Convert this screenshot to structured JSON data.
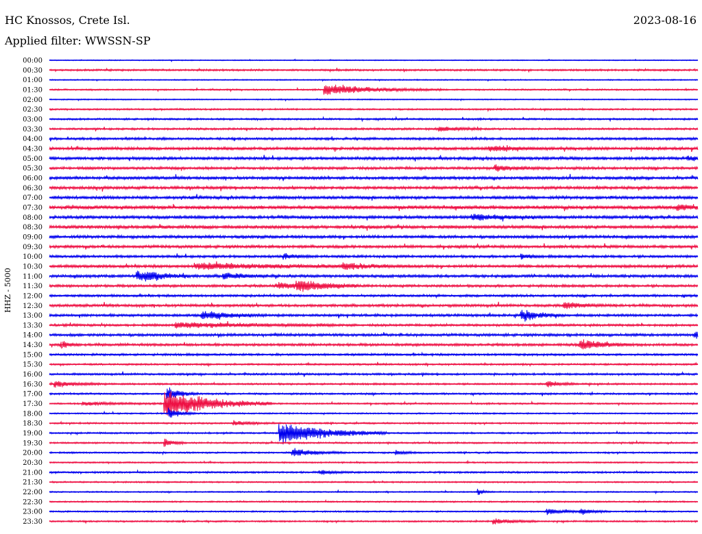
{
  "header": {
    "station": "HC Knossos, Crete Isl.",
    "filter": "Applied filter: WWSSN-SP",
    "date": "2023-08-16"
  },
  "chart_data": {
    "type": "line",
    "subtype": "helicorder",
    "channel_label": "HHZ - 5000",
    "colors": [
      "#0000ee",
      "#ee1144"
    ],
    "rows": [
      "00:00",
      "00:30",
      "01:00",
      "01:30",
      "02:00",
      "02:30",
      "03:00",
      "03:30",
      "04:00",
      "04:30",
      "05:00",
      "05:30",
      "06:00",
      "06:30",
      "07:00",
      "07:30",
      "08:00",
      "08:30",
      "09:00",
      "09:30",
      "10:00",
      "10:30",
      "11:00",
      "11:30",
      "12:00",
      "12:30",
      "13:00",
      "13:30",
      "14:00",
      "14:30",
      "15:00",
      "15:30",
      "16:00",
      "16:30",
      "17:00",
      "17:30",
      "18:00",
      "18:30",
      "19:00",
      "19:30",
      "20:00",
      "20:30",
      "21:00",
      "21:30",
      "22:00",
      "22:30",
      "23:00",
      "23:30"
    ],
    "row_minutes": 30,
    "noise": [
      0.5,
      1.0,
      0.6,
      0.8,
      0.6,
      0.9,
      1.0,
      1.1,
      1.3,
      1.6,
      1.6,
      1.5,
      1.6,
      1.6,
      1.7,
      2.0,
      1.7,
      1.8,
      1.6,
      1.6,
      1.4,
      1.6,
      1.6,
      1.4,
      1.3,
      1.5,
      1.4,
      1.3,
      1.5,
      1.4,
      1.2,
      1.0,
      1.1,
      1.0,
      1.0,
      0.9,
      0.8,
      0.9,
      0.9,
      0.9,
      0.9,
      0.8,
      1.0,
      0.8,
      0.7,
      0.8,
      0.8,
      0.9
    ],
    "events": [
      {
        "row": 3,
        "minute": 12.7,
        "amp": 9,
        "duration": 2.2
      },
      {
        "row": 7,
        "minute": 18.0,
        "amp": 5,
        "duration": 0.8
      },
      {
        "row": 9,
        "minute": 20.3,
        "amp": 5,
        "duration": 1.2
      },
      {
        "row": 10,
        "minute": 29.5,
        "amp": 5,
        "duration": 0.4
      },
      {
        "row": 11,
        "minute": 20.6,
        "amp": 5,
        "duration": 0.8
      },
      {
        "row": 15,
        "minute": 29.0,
        "amp": 6,
        "duration": 0.5
      },
      {
        "row": 16,
        "minute": 19.5,
        "amp": 5,
        "duration": 1.5
      },
      {
        "row": 20,
        "minute": 10.8,
        "amp": 5,
        "duration": 0.5
      },
      {
        "row": 20,
        "minute": 21.8,
        "amp": 5,
        "duration": 0.4
      },
      {
        "row": 21,
        "minute": 6.7,
        "amp": 5,
        "duration": 4.0
      },
      {
        "row": 21,
        "minute": 13.5,
        "amp": 5,
        "duration": 1.0
      },
      {
        "row": 22,
        "minute": 4.4,
        "amp": 6,
        "duration": 0.8
      },
      {
        "row": 22,
        "minute": 4.0,
        "amp": 7,
        "duration": 1.0
      },
      {
        "row": 22,
        "minute": 8.0,
        "amp": 5,
        "duration": 1.0
      },
      {
        "row": 23,
        "minute": 11.4,
        "amp": 9,
        "duration": 1.2
      },
      {
        "row": 23,
        "minute": 10.5,
        "amp": 5,
        "duration": 1.5
      },
      {
        "row": 25,
        "minute": 23.8,
        "amp": 5,
        "duration": 1.0
      },
      {
        "row": 26,
        "minute": 7.0,
        "amp": 8,
        "duration": 1.2
      },
      {
        "row": 26,
        "minute": 21.8,
        "amp": 10,
        "duration": 0.8
      },
      {
        "row": 27,
        "minute": 5.8,
        "amp": 5,
        "duration": 3.0
      },
      {
        "row": 28,
        "minute": 29.8,
        "amp": 7,
        "duration": 0.4
      },
      {
        "row": 29,
        "minute": 0.5,
        "amp": 7,
        "duration": 0.4
      },
      {
        "row": 29,
        "minute": 24.5,
        "amp": 9,
        "duration": 1.0
      },
      {
        "row": 33,
        "minute": 0.2,
        "amp": 5,
        "duration": 1.0
      },
      {
        "row": 33,
        "minute": 23.0,
        "amp": 5,
        "duration": 0.6
      },
      {
        "row": 35,
        "minute": 5.3,
        "amp": 24,
        "duration": 2.0
      },
      {
        "row": 35,
        "minute": 1.5,
        "amp": 3,
        "duration": 1.5
      },
      {
        "row": 36,
        "minute": 5.5,
        "amp": 10,
        "duration": 0.5
      },
      {
        "row": 34,
        "minute": 5.4,
        "amp": 12,
        "duration": 0.6
      },
      {
        "row": 37,
        "minute": 8.5,
        "amp": 4,
        "duration": 0.8
      },
      {
        "row": 38,
        "minute": 10.6,
        "amp": 20,
        "duration": 2.0
      },
      {
        "row": 39,
        "minute": 5.3,
        "amp": 8,
        "duration": 0.4
      },
      {
        "row": 40,
        "minute": 11.2,
        "amp": 7,
        "duration": 1.0
      },
      {
        "row": 40,
        "minute": 16.0,
        "amp": 4,
        "duration": 0.5
      },
      {
        "row": 42,
        "minute": 12.5,
        "amp": 4,
        "duration": 0.6
      },
      {
        "row": 44,
        "minute": 19.8,
        "amp": 5,
        "duration": 0.3
      },
      {
        "row": 46,
        "minute": 23.0,
        "amp": 5,
        "duration": 0.8
      },
      {
        "row": 46,
        "minute": 24.5,
        "amp": 5,
        "duration": 0.6
      },
      {
        "row": 47,
        "minute": 20.5,
        "amp": 5,
        "duration": 0.8
      }
    ]
  }
}
